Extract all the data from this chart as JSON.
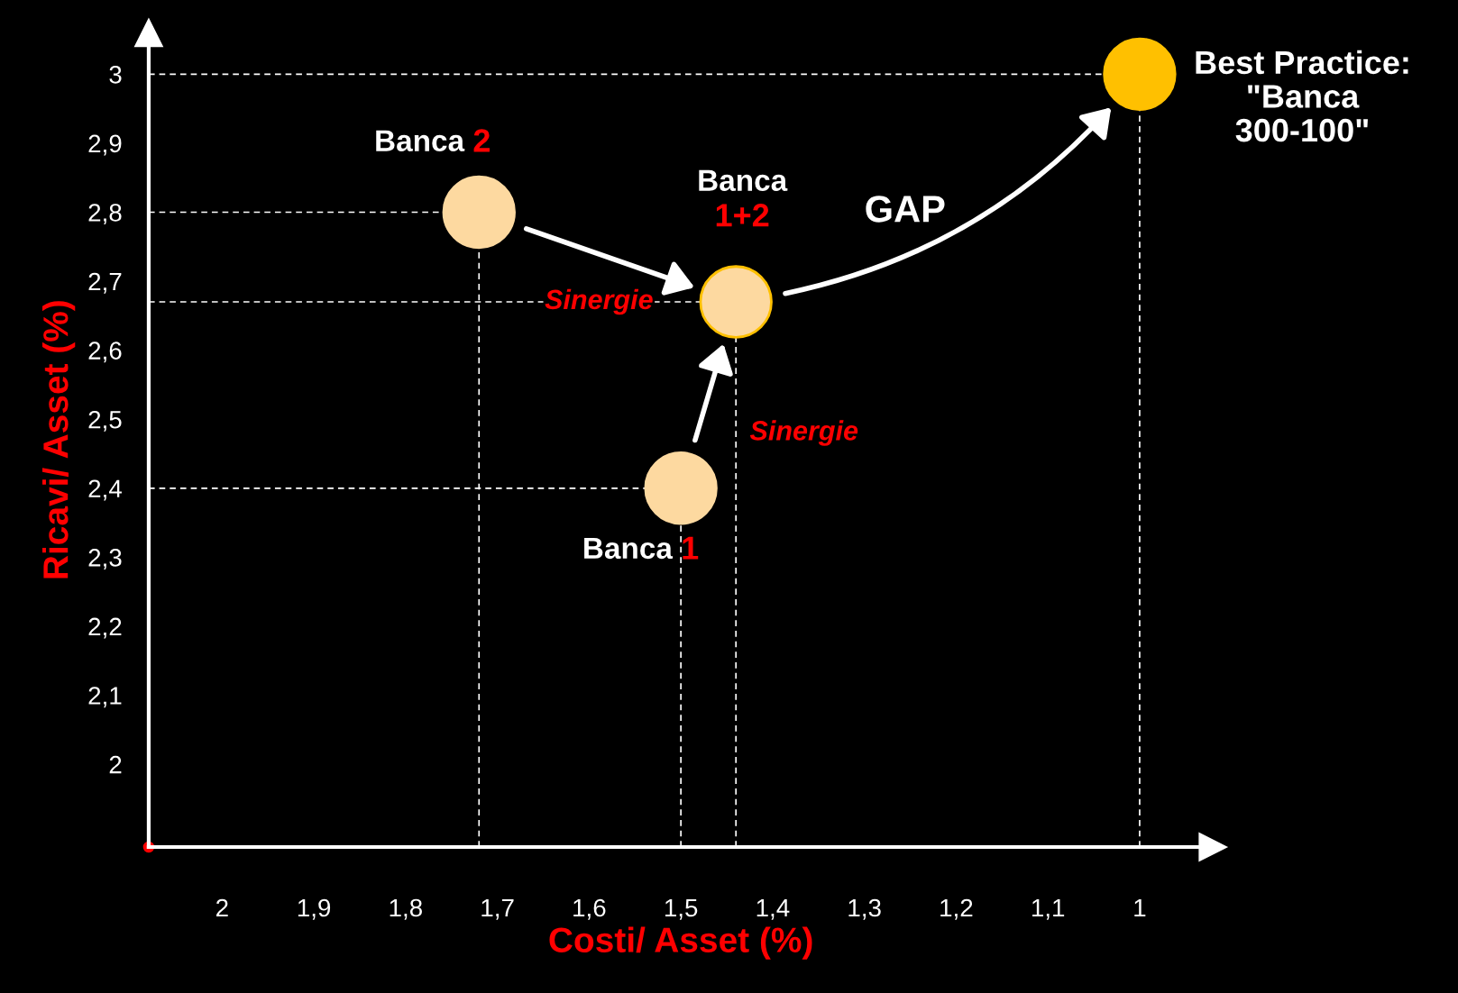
{
  "chart_data": {
    "type": "scatter",
    "xlabel": "Costi/ Asset (%)",
    "ylabel": "Ricavi/ Asset (%)",
    "xlim": [
      2.08,
      0.92
    ],
    "ylim": [
      1.88,
      3.06
    ],
    "xticks": [
      {
        "value": 2,
        "label": "2"
      },
      {
        "value": 1.9,
        "label": "1,9"
      },
      {
        "value": 1.8,
        "label": "1,8"
      },
      {
        "value": 1.7,
        "label": "1,7"
      },
      {
        "value": 1.6,
        "label": "1,6"
      },
      {
        "value": 1.5,
        "label": "1,5"
      },
      {
        "value": 1.4,
        "label": "1,4"
      },
      {
        "value": 1.3,
        "label": "1,3"
      },
      {
        "value": 1.2,
        "label": "1,2"
      },
      {
        "value": 1.1,
        "label": "1,1"
      },
      {
        "value": 1,
        "label": "1"
      }
    ],
    "yticks": [
      {
        "value": 2,
        "label": "2"
      },
      {
        "value": 2.1,
        "label": "2,1"
      },
      {
        "value": 2.2,
        "label": "2,2"
      },
      {
        "value": 2.3,
        "label": "2,3"
      },
      {
        "value": 2.4,
        "label": "2,4"
      },
      {
        "value": 2.5,
        "label": "2,5"
      },
      {
        "value": 2.6,
        "label": "2,6"
      },
      {
        "value": 2.7,
        "label": "2,7"
      },
      {
        "value": 2.8,
        "label": "2,8"
      },
      {
        "value": 2.9,
        "label": "2,9"
      },
      {
        "value": 3,
        "label": "3"
      }
    ],
    "series": [
      {
        "name": "Banca 2",
        "color": "#fdd9a0",
        "x": [
          1.72
        ],
        "values": [
          2.8
        ]
      },
      {
        "name": "Banca 1",
        "color": "#fdd9a0",
        "x": [
          1.5
        ],
        "values": [
          2.4
        ]
      },
      {
        "name": "Banca\n1+2",
        "color": "#fdd9a0",
        "x": [
          1.44
        ],
        "values": [
          2.67
        ]
      },
      {
        "name": "Best Practice:\n\"Banca\n300-100\"",
        "color": "#ffc000",
        "x": [
          1.0
        ],
        "values": [
          3.0
        ]
      }
    ],
    "ref_lines": [
      {
        "axis": "x",
        "value": 1.72,
        "line_style": "dashed"
      },
      {
        "axis": "x",
        "value": 1.5,
        "line_style": "dashed"
      },
      {
        "axis": "x",
        "value": 1.44,
        "line_style": "dashed"
      },
      {
        "axis": "x",
        "value": 1.0,
        "line_style": "dashed"
      },
      {
        "axis": "y",
        "value": 2.8,
        "line_style": "dashed"
      },
      {
        "axis": "y",
        "value": 2.4,
        "line_style": "dashed"
      },
      {
        "axis": "y",
        "value": 2.67,
        "line_style": "dashed"
      },
      {
        "axis": "y",
        "value": 3.0,
        "line_style": "dashed"
      }
    ],
    "annotations": [
      "Sinergie",
      "Sinergie",
      "GAP"
    ],
    "marker": "circle",
    "grid": false,
    "legend": false
  }
}
